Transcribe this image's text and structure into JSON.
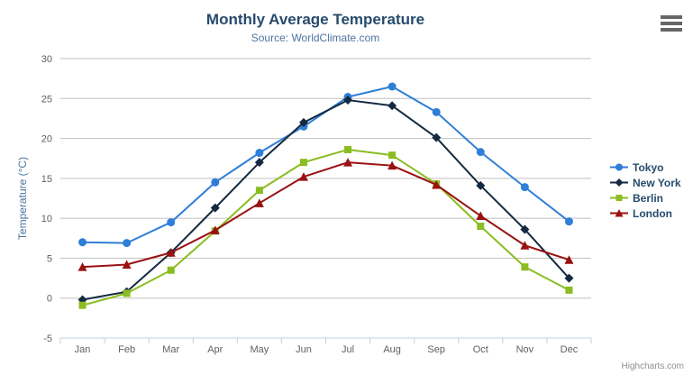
{
  "chart_data": {
    "type": "line",
    "title": "Monthly Average Temperature",
    "subtitle": "Source: WorldClimate.com",
    "categories": [
      "Jan",
      "Feb",
      "Mar",
      "Apr",
      "May",
      "Jun",
      "Jul",
      "Aug",
      "Sep",
      "Oct",
      "Nov",
      "Dec"
    ],
    "series": [
      {
        "name": "Tokyo",
        "marker": "circle",
        "color": "#2f7ed8",
        "values": [
          7.0,
          6.9,
          9.5,
          14.5,
          18.2,
          21.5,
          25.2,
          26.5,
          23.3,
          18.3,
          13.9,
          9.6
        ]
      },
      {
        "name": "New York",
        "marker": "diamond",
        "color": "#152a40",
        "values": [
          -0.2,
          0.8,
          5.7,
          11.3,
          17.0,
          22.0,
          24.8,
          24.1,
          20.1,
          14.1,
          8.6,
          2.5
        ]
      },
      {
        "name": "Berlin",
        "marker": "square",
        "color": "#8bbc21",
        "values": [
          -0.9,
          0.6,
          3.5,
          8.4,
          13.5,
          17.0,
          18.6,
          17.9,
          14.3,
          9.0,
          3.9,
          1.0
        ]
      },
      {
        "name": "London",
        "marker": "triangle",
        "color": "#991111",
        "values": [
          3.9,
          4.2,
          5.7,
          8.5,
          11.9,
          15.2,
          17.0,
          16.6,
          14.2,
          10.3,
          6.6,
          4.8
        ]
      }
    ],
    "xlabel": "",
    "ylabel": "Temperature (°C)",
    "ylim": [
      -5,
      30
    ],
    "ytick_step": 5,
    "grid": true,
    "legend_position": "right"
  },
  "colors": {
    "grid": "#C0C0C0",
    "axis_line": "#C0D0E0",
    "tick_label": "#606060",
    "title": "#274b6d",
    "subtitle": "#4d759e",
    "axis_title": "#4d759e",
    "legend_text": "#274b6d",
    "credit": "#909090",
    "menu_icon": "#666666"
  },
  "menu": {
    "icon": "hamburger-icon"
  },
  "credit": {
    "label": "Highcharts.com"
  }
}
